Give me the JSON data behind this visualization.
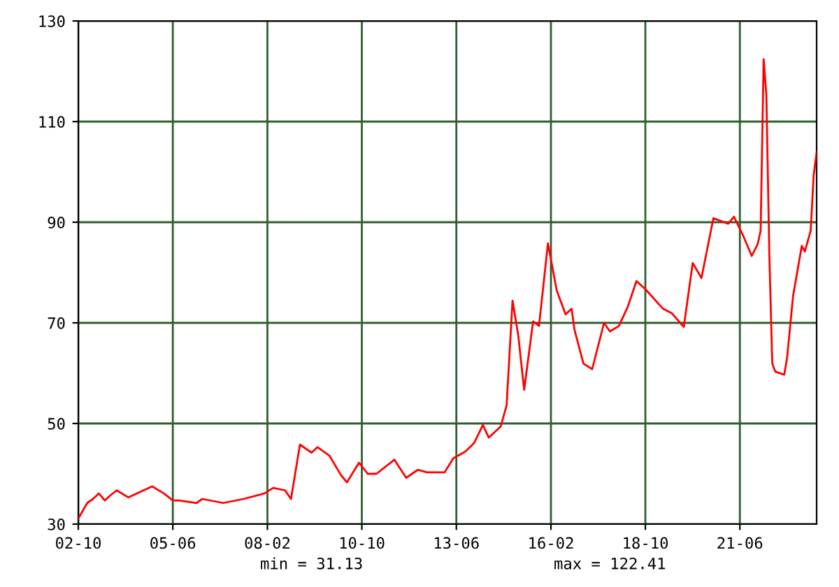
{
  "chart_data": {
    "type": "line",
    "x": [
      "2002-10",
      "2003-01",
      "2003-03",
      "2003-05",
      "2003-07",
      "2003-09",
      "2003-11",
      "2004-03",
      "2004-08",
      "2004-11",
      "2005-03",
      "2005-06",
      "2005-08",
      "2006-02",
      "2006-04",
      "2006-11",
      "2007-06",
      "2008-01",
      "2008-04",
      "2008-08",
      "2008-10",
      "2009-01",
      "2009-05",
      "2009-07",
      "2009-11",
      "2010-03",
      "2010-05",
      "2010-09",
      "2010-12",
      "2011-03",
      "2011-09",
      "2012-01",
      "2012-05",
      "2012-08",
      "2013-02",
      "2013-05",
      "2013-09",
      "2013-12",
      "2014-03",
      "2014-05",
      "2014-09",
      "2014-11",
      "2015-01",
      "2015-03",
      "2015-05",
      "2015-08",
      "2015-10",
      "2016-01",
      "2016-04",
      "2016-07",
      "2016-09",
      "2016-10",
      "2017-01",
      "2017-04",
      "2017-08",
      "2017-10",
      "2018-01",
      "2018-04",
      "2018-07",
      "2018-10",
      "2019-04",
      "2019-07",
      "2019-11",
      "2020-02",
      "2020-05",
      "2020-09",
      "2021-02",
      "2021-04",
      "2021-07",
      "2021-10",
      "2021-12",
      "2022-01",
      "2022-02",
      "2022-03",
      "2022-04",
      "2022-05",
      "2022-06",
      "2022-09",
      "2022-10",
      "2022-12",
      "2023-03",
      "2023-04",
      "2023-06",
      "2023-07",
      "2023-08"
    ],
    "series": [
      {
        "color": "#ff0000",
        "values": [
          31.1,
          34.2,
          35.0,
          36.1,
          34.7,
          35.8,
          36.7,
          35.3,
          36.7,
          37.5,
          36.1,
          34.7,
          34.7,
          34.2,
          35.0,
          34.2,
          35.0,
          36.1,
          37.2,
          36.7,
          35.0,
          45.8,
          44.2,
          45.3,
          43.6,
          39.7,
          38.3,
          42.2,
          40.0,
          40.0,
          42.8,
          39.2,
          40.8,
          40.3,
          40.3,
          43.1,
          44.4,
          46.1,
          49.7,
          47.2,
          49.4,
          53.6,
          74.4,
          67.5,
          56.7,
          70.3,
          69.4,
          85.8,
          76.4,
          71.7,
          72.8,
          68.6,
          61.9,
          60.8,
          70.0,
          68.3,
          69.4,
          73.1,
          78.3,
          76.7,
          72.8,
          71.9,
          69.2,
          81.9,
          78.9,
          90.8,
          89.7,
          91.1,
          87.5,
          83.3,
          85.6,
          88.3,
          122.4,
          115.3,
          83.3,
          61.9,
          60.3,
          59.7,
          63.1,
          75.3,
          85.3,
          84.2,
          88.3,
          99.2,
          103.9
        ]
      }
    ],
    "xlim": [
      "2002-10",
      "2023-08"
    ],
    "xticks": [
      {
        "value": "2002-10",
        "label": "02-10"
      },
      {
        "value": "2005-06",
        "label": "05-06"
      },
      {
        "value": "2008-02",
        "label": "08-02"
      },
      {
        "value": "2010-10",
        "label": "10-10"
      },
      {
        "value": "2013-06",
        "label": "13-06"
      },
      {
        "value": "2016-02",
        "label": "16-02"
      },
      {
        "value": "2018-10",
        "label": "18-10"
      },
      {
        "value": "2021-06",
        "label": "21-06"
      }
    ],
    "ylim": [
      30,
      130
    ],
    "yticks": [
      30,
      50,
      70,
      90,
      110,
      130
    ],
    "grid": true,
    "annotations": [
      "min = 31.13",
      "max = 122.41"
    ]
  }
}
